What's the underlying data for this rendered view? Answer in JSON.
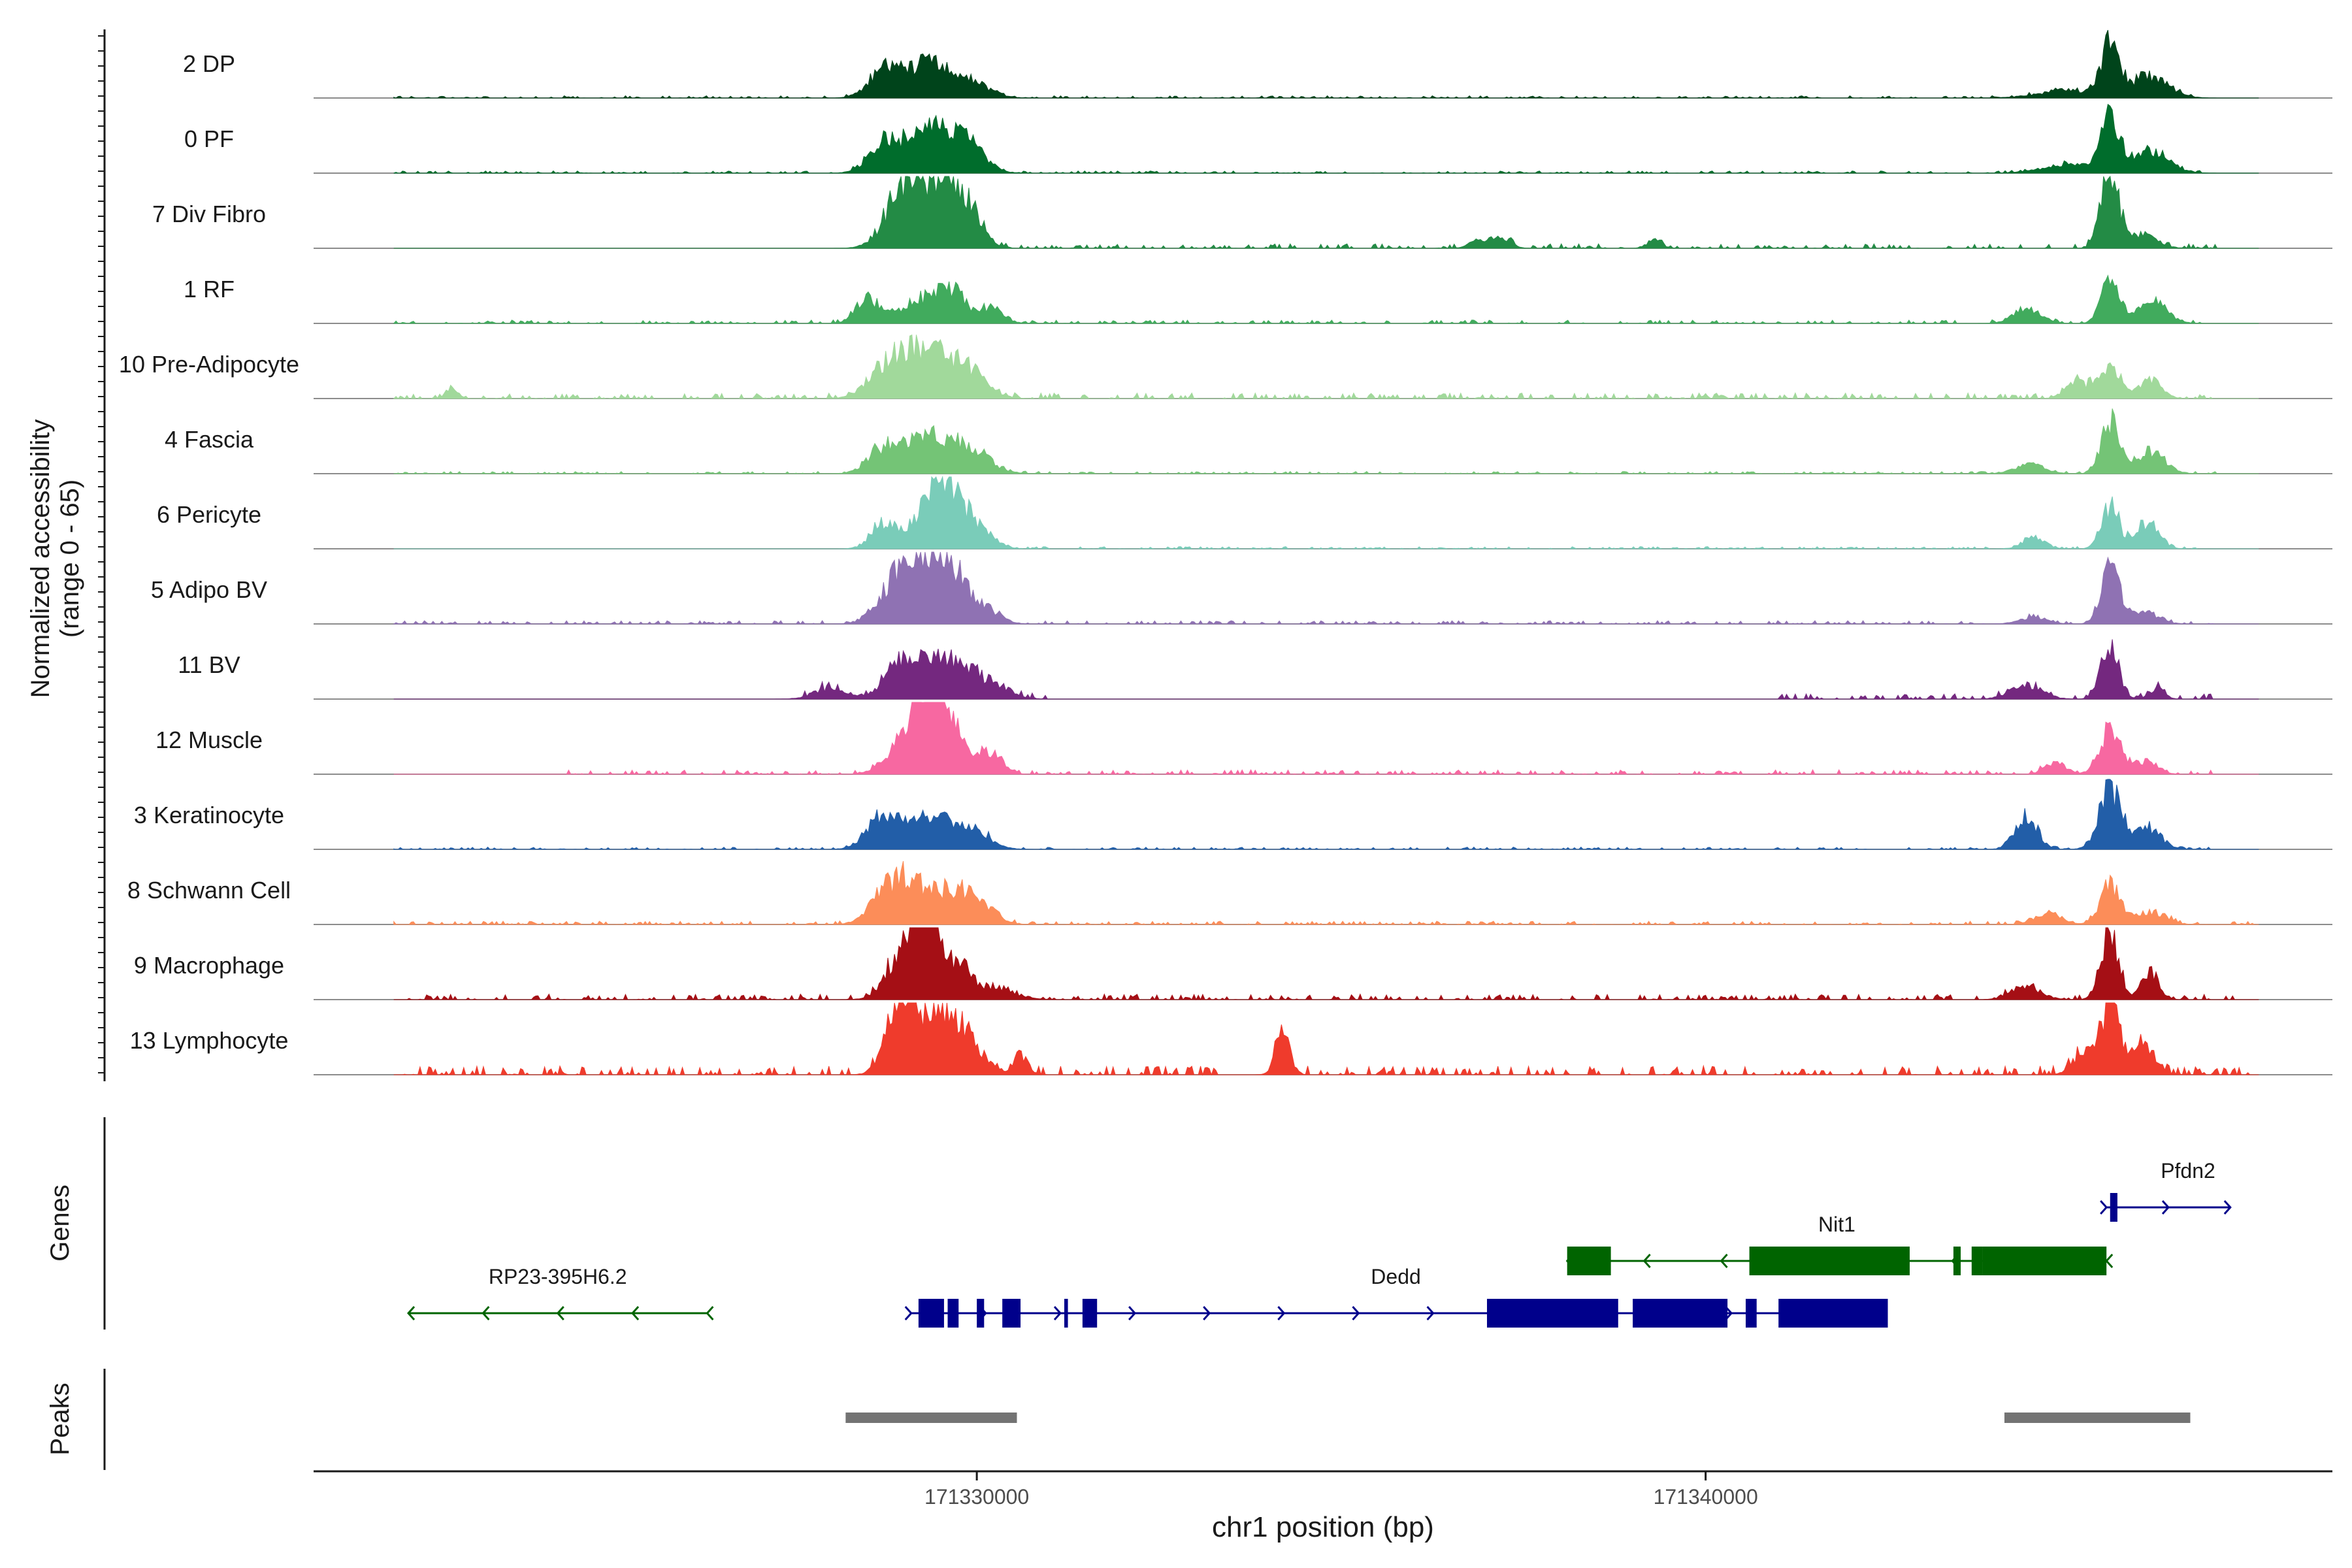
{
  "chart_data": {
    "type": "area",
    "title": "",
    "genomic_window": {
      "chrom": "chr1",
      "start": 171320900,
      "end": 171348600
    },
    "coverage": {
      "ylabel": "Normalized accessibility",
      "ylabel_range": "(range 0 - 65)",
      "ylim": [
        0,
        65
      ],
      "tracks": [
        {
          "name": "2 DP",
          "color": "#00441b",
          "peaks": [
            [
              171328700,
              22,
              200
            ],
            [
              171329300,
              30,
              300
            ],
            [
              171329900,
              14,
              260
            ],
            [
              171345000,
              7,
              400
            ],
            [
              171345550,
              45,
              120
            ],
            [
              171346100,
              20,
              250
            ]
          ],
          "noise": 2,
          "noise_spans": [
            [
              171322000,
              171346800
            ]
          ],
          "seed": 11
        },
        {
          "name": "0 PF",
          "color": "#006d2c",
          "peaks": [
            [
              171328700,
              24,
              200
            ],
            [
              171329300,
              38,
              300
            ],
            [
              171329850,
              26,
              240
            ],
            [
              171345000,
              8,
              350
            ],
            [
              171345550,
              52,
              120
            ],
            [
              171346100,
              20,
              250
            ]
          ],
          "noise": 2,
          "noise_spans": [
            [
              171322000,
              171346800
            ]
          ],
          "seed": 12
        },
        {
          "name": "7 Div Fibro",
          "color": "#238b45",
          "peaks": [
            [
              171329000,
              55,
              240
            ],
            [
              171329500,
              60,
              220
            ],
            [
              171329900,
              32,
              180
            ],
            [
              171336900,
              8,
              120
            ],
            [
              171337200,
              10,
              120
            ],
            [
              171339300,
              7,
              100
            ],
            [
              171345550,
              70,
              120
            ],
            [
              171346000,
              12,
              200
            ]
          ],
          "noise": 4,
          "noise_spans": [
            [
              171328700,
              171347000
            ]
          ],
          "seed": 13
        },
        {
          "name": "1 RF",
          "color": "#41ab5d",
          "peaks": [
            [
              171328500,
              22,
              160
            ],
            [
              171329200,
              20,
              260
            ],
            [
              171329650,
              28,
              200
            ],
            [
              171330200,
              14,
              160
            ],
            [
              171344400,
              14,
              180
            ],
            [
              171345550,
              40,
              120
            ],
            [
              171346100,
              22,
              200
            ]
          ],
          "noise": 3,
          "noise_spans": [
            [
              171322000,
              171346800
            ]
          ],
          "seed": 14
        },
        {
          "name": "10 Pre-Adipocyte",
          "color": "#a1d99b",
          "peaks": [
            [
              171328800,
              28,
              260
            ],
            [
              171329300,
              40,
              300
            ],
            [
              171329850,
              24,
              260
            ],
            [
              171322800,
              10,
              80
            ],
            [
              171345100,
              16,
              150
            ],
            [
              171345550,
              26,
              140
            ],
            [
              171346100,
              18,
              150
            ]
          ],
          "noise": 5,
          "noise_spans": [
            [
              171322000,
              171347000
            ]
          ],
          "seed": 15
        },
        {
          "name": "4 Fascia",
          "color": "#74c476",
          "peaks": [
            [
              171328700,
              20,
              200
            ],
            [
              171329300,
              34,
              300
            ],
            [
              171329900,
              22,
              260
            ],
            [
              171344450,
              8,
              200
            ],
            [
              171345550,
              48,
              120
            ],
            [
              171346100,
              20,
              200
            ]
          ],
          "noise": 2,
          "noise_spans": [
            [
              171322000,
              171347000
            ]
          ],
          "seed": 16
        },
        {
          "name": "6 Pericyte",
          "color": "#7accb9",
          "peaks": [
            [
              171328700,
              22,
              160
            ],
            [
              171329300,
              28,
              260
            ],
            [
              171329600,
              50,
              200
            ],
            [
              171330000,
              18,
              200
            ],
            [
              171344500,
              10,
              150
            ],
            [
              171345550,
              38,
              120
            ],
            [
              171346050,
              24,
              160
            ]
          ],
          "noise": 2,
          "noise_spans": [
            [
              171328500,
              171346800
            ]
          ],
          "seed": 17
        },
        {
          "name": "5 Adipo BV",
          "color": "#8f72b3",
          "peaks": [
            [
              171328800,
              24,
              220
            ],
            [
              171329250,
              58,
              260
            ],
            [
              171329650,
              40,
              200
            ],
            [
              171330100,
              14,
              200
            ],
            [
              171344500,
              5,
              200
            ],
            [
              171345550,
              50,
              120
            ],
            [
              171346000,
              10,
              200
            ]
          ],
          "noise": 3,
          "noise_spans": [
            [
              171322000,
              171347000
            ]
          ],
          "seed": 18
        },
        {
          "name": "11 BV",
          "color": "#74287f",
          "peaks": [
            [
              171328000,
              10,
              220
            ],
            [
              171328900,
              18,
              220
            ],
            [
              171329300,
              30,
              300
            ],
            [
              171329800,
              25,
              260
            ],
            [
              171330300,
              10,
              200
            ],
            [
              171344400,
              12,
              220
            ],
            [
              171345550,
              48,
              120
            ],
            [
              171346200,
              10,
              100
            ]
          ],
          "noise": 5,
          "noise_spans": [
            [
              171327600,
              171331000
            ],
            [
              171341000,
              171347000
            ]
          ],
          "seed": 19
        },
        {
          "name": "12 Muscle",
          "color": "#f768a1",
          "peaks": [
            [
              171328900,
              20,
              200
            ],
            [
              171329300,
              70,
              200
            ],
            [
              171329650,
              40,
              200
            ],
            [
              171330200,
              20,
              150
            ],
            [
              171344800,
              10,
              150
            ],
            [
              171345550,
              40,
              140
            ],
            [
              171346050,
              12,
              150
            ]
          ],
          "noise": 4,
          "noise_spans": [
            [
              171324400,
              171347000
            ]
          ],
          "seed": 20
        },
        {
          "name": "3 Keratinocyte",
          "color": "#225ea8",
          "peaks": [
            [
              171328700,
              30,
              200
            ],
            [
              171329300,
              32,
              260
            ],
            [
              171329900,
              20,
              240
            ],
            [
              171344400,
              30,
              150
            ],
            [
              171345550,
              55,
              150
            ],
            [
              171346050,
              20,
              180
            ]
          ],
          "noise": 2,
          "noise_spans": [
            [
              171322000,
              171347000
            ]
          ],
          "seed": 21
        },
        {
          "name": "8 Schwann Cell",
          "color": "#fc8d59",
          "peaks": [
            [
              171328700,
              20,
              200
            ],
            [
              171329100,
              38,
              260
            ],
            [
              171329700,
              28,
              240
            ],
            [
              171330100,
              12,
              200
            ],
            [
              171344700,
              10,
              180
            ],
            [
              171345550,
              38,
              130
            ],
            [
              171346100,
              12,
              200
            ]
          ],
          "noise": 3,
          "noise_spans": [
            [
              171322000,
              171347500
            ]
          ],
          "seed": 22
        },
        {
          "name": "9 Macrophage",
          "color": "#a50f15",
          "peaks": [
            [
              171329000,
              45,
              220
            ],
            [
              171329300,
              80,
              160
            ],
            [
              171329700,
              30,
              200
            ],
            [
              171330200,
              10,
              300
            ],
            [
              171344400,
              12,
              200
            ],
            [
              171345550,
              60,
              120
            ],
            [
              171346100,
              25,
              120
            ]
          ],
          "noise": 5,
          "noise_spans": [
            [
              171322000,
              171347500
            ]
          ],
          "seed": 23
        },
        {
          "name": "13 Lymphocyte",
          "color": "#ef3b2c",
          "peaks": [
            [
              171329000,
              75,
              200
            ],
            [
              171329500,
              55,
              200
            ],
            [
              171329900,
              30,
              200
            ],
            [
              171330600,
              18,
              100
            ],
            [
              171334200,
              35,
              100
            ],
            [
              171345200,
              20,
              150
            ],
            [
              171345550,
              60,
              130
            ],
            [
              171346000,
              28,
              150
            ]
          ],
          "noise": 8,
          "noise_spans": [
            [
              171322000,
              171347500
            ]
          ],
          "seed": 24
        }
      ]
    },
    "genes": {
      "label": "Genes",
      "items": [
        {
          "name": "RP23-395H6.2",
          "strand": "-",
          "color": "#006400",
          "row": "lower",
          "start": 171322200,
          "end": 171326300,
          "exons": []
        },
        {
          "name": "Dedd",
          "strand": "+",
          "color": "#00008b",
          "row": "lower",
          "start": 171329100,
          "end": 171342400,
          "exons": [
            [
              171329200,
              171329550
            ],
            [
              171329600,
              171329750
            ],
            [
              171330000,
              171330100
            ],
            [
              171330350,
              171330600
            ],
            [
              171331200,
              171331250
            ],
            [
              171331450,
              171331650
            ],
            [
              171337000,
              171338800
            ],
            [
              171339000,
              171340300
            ],
            [
              171340550,
              171340700
            ],
            [
              171341000,
              171342500
            ]
          ]
        },
        {
          "name": "Nit1",
          "strand": "-",
          "color": "#006400",
          "row": "middle",
          "start": 171338100,
          "end": 171345500,
          "exons": [
            [
              171338100,
              171338700
            ],
            [
              171340600,
              171342800
            ],
            [
              171343400,
              171343500
            ],
            [
              171343650,
              171343800
            ],
            [
              171343800,
              171345500
            ]
          ]
        },
        {
          "name": "Pfdn2",
          "strand": "+",
          "color": "#00008b",
          "row": "upper",
          "start": 171345500,
          "end": 171347200,
          "exons": [
            [
              171345550,
              171345650
            ]
          ]
        }
      ]
    },
    "peaks_track": {
      "label": "Peaks",
      "color": "#737373",
      "regions": [
        [
          171328200,
          171330550
        ],
        [
          171344100,
          171346650
        ]
      ]
    },
    "x_axis": {
      "label": "chr1 position (bp)",
      "ticks": [
        171330000,
        171340000
      ],
      "tick_labels": [
        "171330000",
        "171340000"
      ]
    }
  }
}
